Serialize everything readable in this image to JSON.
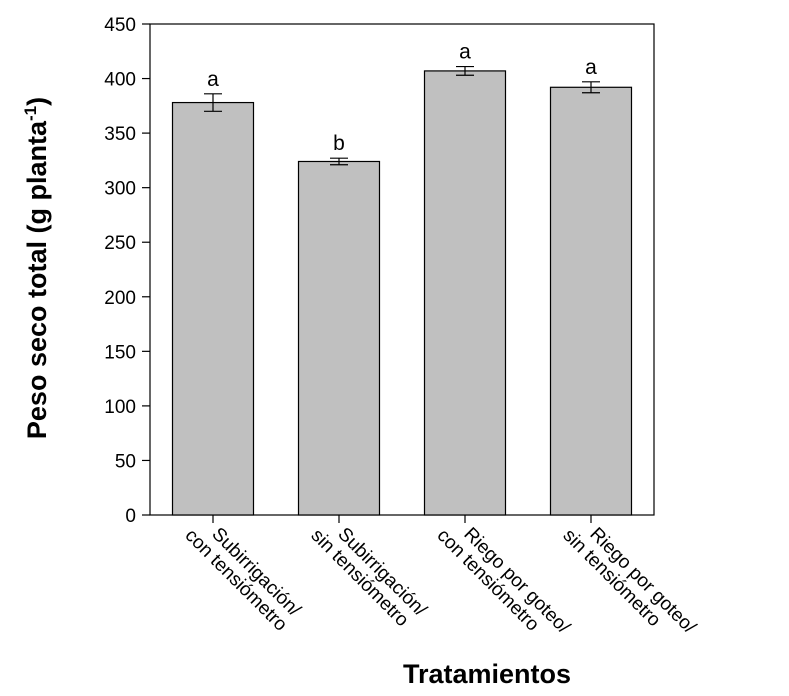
{
  "chart_data": {
    "type": "bar",
    "categories": [
      [
        "Subirrigación/",
        "con tensiómetro"
      ],
      [
        "Subirrigación/",
        "sin tensiómetro"
      ],
      [
        "Riego por goteo/",
        "con tensiómetro"
      ],
      [
        "Riego por goteo/",
        "sin tensiómetro"
      ]
    ],
    "values": [
      378,
      324,
      407,
      392
    ],
    "errors": [
      8,
      3,
      4,
      5
    ],
    "significance": [
      "a",
      "b",
      "a",
      "a"
    ],
    "xlabel": "Tratamientos",
    "ylabel": "Peso seco total (g planta",
    "ylabel_sup": "-1",
    "ylabel_close": ")",
    "ylim": [
      0,
      450
    ],
    "yticks": [
      0,
      50,
      100,
      150,
      200,
      250,
      300,
      350,
      400,
      450
    ],
    "bar_color": "#c0c0c0",
    "grid": false
  }
}
